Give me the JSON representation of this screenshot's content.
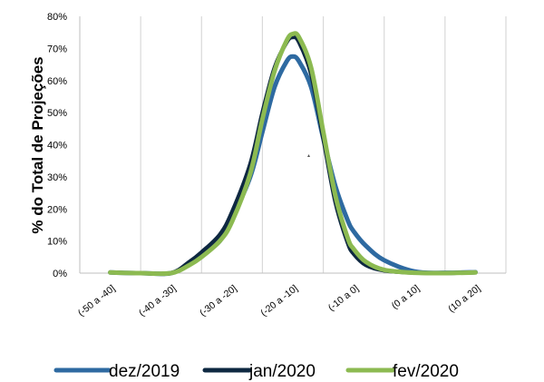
{
  "chart_data": {
    "type": "line",
    "ylabel": "% do Total de Projeções",
    "xlabel": "",
    "categories": [
      "(-50 a -40]",
      "(-40 a -30]",
      "(-30 a -20]",
      "(-20 a -10]",
      "(-10 a 0]",
      "(0 a 10]",
      "(10 a 20]"
    ],
    "ylim": [
      0,
      80
    ],
    "yticks": [
      "0%",
      "10%",
      "20%",
      "30%",
      "40%",
      "50%",
      "60%",
      "70%",
      "80%"
    ],
    "grid": "vertical",
    "legend_position": "bottom",
    "x": [
      -45,
      -35,
      -25,
      -15,
      -5,
      5,
      15
    ],
    "series": [
      {
        "name": "dez/2019",
        "color": "#2e6aa1",
        "x": [
          -45,
          -40,
          -35,
          -32,
          -30,
          -27,
          -25,
          -22,
          -20,
          -18,
          -16,
          -15,
          -14,
          -12,
          -10,
          -8,
          -6,
          -5,
          -3,
          0,
          5,
          10,
          15
        ],
        "y": [
          0.2,
          0.0,
          0.0,
          3.0,
          5.5,
          10.0,
          17.0,
          30.0,
          44.0,
          58.0,
          66.0,
          67.5,
          66.0,
          58.0,
          42.0,
          27.0,
          16.5,
          13.0,
          8.5,
          4.0,
          0.5,
          0.1,
          0.3
        ]
      },
      {
        "name": "jan/2020",
        "color": "#0e2841",
        "x": [
          -45,
          -40,
          -35,
          -32,
          -30,
          -27,
          -25,
          -22,
          -20,
          -18,
          -16,
          -15,
          -14,
          -12,
          -10,
          -8,
          -6,
          -5,
          -3,
          0,
          5,
          10,
          15
        ],
        "y": [
          0.2,
          0.0,
          0.0,
          3.5,
          6.5,
          12.0,
          19.0,
          34.0,
          50.0,
          64.0,
          72.0,
          73.5,
          72.0,
          62.0,
          42.0,
          22.0,
          9.5,
          6.0,
          2.5,
          0.8,
          0.1,
          0.0,
          0.2
        ]
      },
      {
        "name": "fev/2020",
        "color": "#8cba51",
        "x": [
          -45,
          -40,
          -35,
          -32,
          -30,
          -27,
          -25,
          -22,
          -20,
          -18,
          -16,
          -15,
          -14,
          -12,
          -10,
          -8,
          -6,
          -5,
          -3,
          0,
          5,
          10,
          15
        ],
        "y": [
          0.2,
          0.0,
          0.0,
          2.5,
          5.0,
          10.0,
          16.0,
          31.0,
          48.0,
          63.0,
          72.5,
          74.5,
          73.5,
          64.0,
          44.0,
          24.0,
          11.0,
          7.5,
          3.5,
          1.0,
          0.1,
          0.0,
          0.2
        ]
      }
    ]
  }
}
